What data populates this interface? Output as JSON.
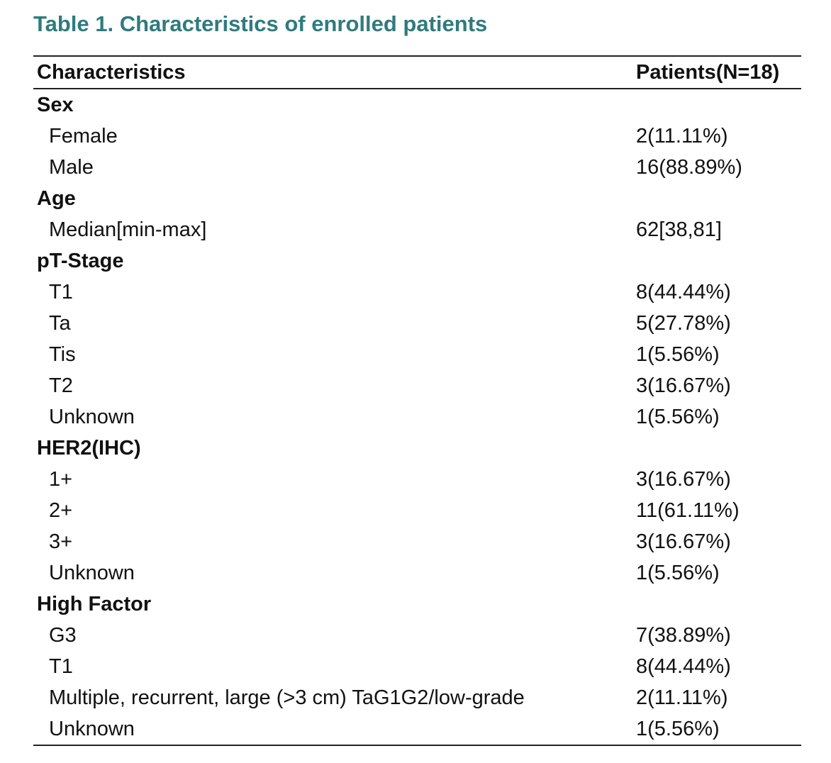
{
  "title": "Table 1. Characteristics of enrolled patients",
  "table": {
    "header": [
      "Characteristics",
      "Patients(N=18)"
    ],
    "groups": [
      {
        "label": "Sex",
        "rows": [
          [
            "Female",
            "2(11.11%)"
          ],
          [
            "Male",
            "16(88.89%)"
          ]
        ]
      },
      {
        "label": "Age",
        "rows": [
          [
            "Median[min-max]",
            "62[38,81]"
          ]
        ]
      },
      {
        "label": "pT-Stage",
        "rows": [
          [
            "T1",
            "8(44.44%)"
          ],
          [
            "Ta",
            "5(27.78%)"
          ],
          [
            "Tis",
            "1(5.56%)"
          ],
          [
            "T2",
            "3(16.67%)"
          ],
          [
            "Unknown",
            "1(5.56%)"
          ]
        ]
      },
      {
        "label": "HER2(IHC)",
        "rows": [
          [
            "1+",
            "3(16.67%)"
          ],
          [
            "2+",
            "11(61.11%)"
          ],
          [
            "3+",
            "3(16.67%)"
          ],
          [
            "Unknown",
            "1(5.56%)"
          ]
        ]
      },
      {
        "label": "High Factor",
        "rows": [
          [
            "G3",
            "7(38.89%)"
          ],
          [
            "T1",
            "8(44.44%)"
          ],
          [
            "Multiple, recurrent, large (>3 cm) TaG1G2/low-grade",
            "2(11.11%)"
          ],
          [
            "Unknown",
            "1(5.56%)"
          ]
        ]
      }
    ]
  }
}
